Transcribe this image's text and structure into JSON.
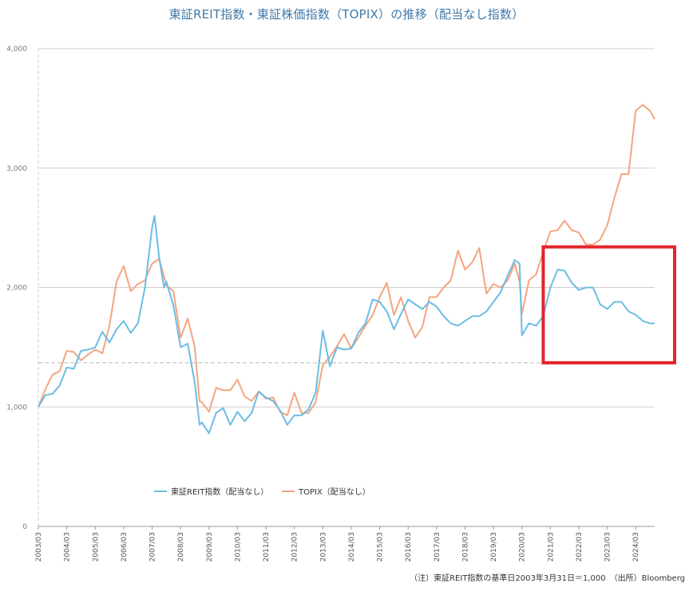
{
  "title": "東証REIT指数・東証株価指数（TOPIX）の推移（配当なし指数）",
  "note": "（注）東証REIT指数の基準日2003年3月31日＝1,000　（出所）Bloomberg",
  "colors": {
    "reit": "#6bbde3",
    "topix": "#f4a581",
    "highlight": "#e3242b",
    "grid": "#cfcfcf",
    "title": "#3f79a8"
  },
  "chart_data": {
    "type": "line",
    "title": "東証REIT指数・東証株価指数（TOPIX）の推移（配当なし指数）",
    "xlabel": "",
    "ylabel": "",
    "ylim": [
      0,
      4000
    ],
    "yticks": [
      "0",
      "1,000",
      "2,000",
      "3,000",
      "4,000"
    ],
    "xticks": [
      "2003/03",
      "2004/03",
      "2005/03",
      "2006/03",
      "2007/03",
      "2008/03",
      "2009/03",
      "2010/03",
      "2011/03",
      "2012/03",
      "2013/03",
      "2014/03",
      "2015/03",
      "2016/03",
      "2017/03",
      "2018/03",
      "2019/03",
      "2020/03",
      "2021/03",
      "2022/03",
      "2023/03",
      "2024/03"
    ],
    "grid": true,
    "legend_position": "bottom-left",
    "reference_line": 1370,
    "highlight_box": {
      "from": "2021/01",
      "to": "2024/12",
      "y_range": [
        1370,
        2340
      ]
    },
    "series": [
      {
        "name": "東証REIT指数（配当なし）",
        "points": [
          [
            "2003/03",
            1000
          ],
          [
            "2003/06",
            1100
          ],
          [
            "2003/09",
            1110
          ],
          [
            "2003/12",
            1180
          ],
          [
            "2004/03",
            1330
          ],
          [
            "2004/06",
            1320
          ],
          [
            "2004/09",
            1470
          ],
          [
            "2004/12",
            1480
          ],
          [
            "2005/03",
            1500
          ],
          [
            "2005/06",
            1630
          ],
          [
            "2005/09",
            1540
          ],
          [
            "2005/12",
            1650
          ],
          [
            "2006/03",
            1720
          ],
          [
            "2006/06",
            1620
          ],
          [
            "2006/09",
            1700
          ],
          [
            "2006/12",
            2000
          ],
          [
            "2007/03",
            2500
          ],
          [
            "2007/04",
            2600
          ],
          [
            "2007/06",
            2250
          ],
          [
            "2007/08",
            2000
          ],
          [
            "2007/09",
            2050
          ],
          [
            "2007/12",
            1850
          ],
          [
            "2008/03",
            1500
          ],
          [
            "2008/06",
            1530
          ],
          [
            "2008/09",
            1200
          ],
          [
            "2008/11",
            850
          ],
          [
            "2008/12",
            870
          ],
          [
            "2009/03",
            780
          ],
          [
            "2009/06",
            950
          ],
          [
            "2009/09",
            990
          ],
          [
            "2009/12",
            850
          ],
          [
            "2010/03",
            960
          ],
          [
            "2010/06",
            880
          ],
          [
            "2010/09",
            950
          ],
          [
            "2010/12",
            1130
          ],
          [
            "2011/03",
            1080
          ],
          [
            "2011/06",
            1050
          ],
          [
            "2011/09",
            970
          ],
          [
            "2011/12",
            850
          ],
          [
            "2012/03",
            930
          ],
          [
            "2012/06",
            930
          ],
          [
            "2012/09",
            980
          ],
          [
            "2012/12",
            1120
          ],
          [
            "2013/03",
            1640
          ],
          [
            "2013/06",
            1340
          ],
          [
            "2013/09",
            1500
          ],
          [
            "2013/12",
            1480
          ],
          [
            "2014/03",
            1490
          ],
          [
            "2014/06",
            1620
          ],
          [
            "2014/09",
            1700
          ],
          [
            "2014/12",
            1900
          ],
          [
            "2015/03",
            1880
          ],
          [
            "2015/06",
            1800
          ],
          [
            "2015/09",
            1650
          ],
          [
            "2015/12",
            1780
          ],
          [
            "2016/03",
            1900
          ],
          [
            "2016/06",
            1860
          ],
          [
            "2016/09",
            1820
          ],
          [
            "2016/12",
            1880
          ],
          [
            "2017/03",
            1840
          ],
          [
            "2017/06",
            1760
          ],
          [
            "2017/09",
            1700
          ],
          [
            "2017/12",
            1680
          ],
          [
            "2018/03",
            1720
          ],
          [
            "2018/06",
            1760
          ],
          [
            "2018/09",
            1760
          ],
          [
            "2018/12",
            1800
          ],
          [
            "2019/03",
            1880
          ],
          [
            "2019/06",
            1960
          ],
          [
            "2019/09",
            2100
          ],
          [
            "2019/12",
            2230
          ],
          [
            "2020/02",
            2200
          ],
          [
            "2020/03",
            1600
          ],
          [
            "2020/06",
            1700
          ],
          [
            "2020/09",
            1680
          ],
          [
            "2020/12",
            1760
          ],
          [
            "2021/03",
            2000
          ],
          [
            "2021/06",
            2150
          ],
          [
            "2021/09",
            2140
          ],
          [
            "2021/12",
            2040
          ],
          [
            "2022/03",
            1980
          ],
          [
            "2022/06",
            2000
          ],
          [
            "2022/09",
            2000
          ],
          [
            "2022/12",
            1860
          ],
          [
            "2023/03",
            1820
          ],
          [
            "2023/06",
            1880
          ],
          [
            "2023/09",
            1880
          ],
          [
            "2023/12",
            1800
          ],
          [
            "2024/03",
            1770
          ],
          [
            "2024/06",
            1720
          ],
          [
            "2024/09",
            1700
          ],
          [
            "2024/11",
            1700
          ]
        ]
      },
      {
        "name": "TOPIX（配当なし）",
        "points": [
          [
            "2003/03",
            1000
          ],
          [
            "2003/06",
            1150
          ],
          [
            "2003/09",
            1270
          ],
          [
            "2003/12",
            1300
          ],
          [
            "2004/03",
            1470
          ],
          [
            "2004/06",
            1460
          ],
          [
            "2004/09",
            1390
          ],
          [
            "2004/12",
            1440
          ],
          [
            "2005/03",
            1480
          ],
          [
            "2005/06",
            1450
          ],
          [
            "2005/09",
            1680
          ],
          [
            "2005/12",
            2050
          ],
          [
            "2006/03",
            2180
          ],
          [
            "2006/06",
            1970
          ],
          [
            "2006/09",
            2030
          ],
          [
            "2006/12",
            2060
          ],
          [
            "2007/03",
            2200
          ],
          [
            "2007/06",
            2240
          ],
          [
            "2007/09",
            2020
          ],
          [
            "2007/12",
            1970
          ],
          [
            "2008/03",
            1580
          ],
          [
            "2008/06",
            1740
          ],
          [
            "2008/09",
            1500
          ],
          [
            "2008/11",
            1050
          ],
          [
            "2008/12",
            1040
          ],
          [
            "2009/03",
            960
          ],
          [
            "2009/06",
            1160
          ],
          [
            "2009/09",
            1140
          ],
          [
            "2009/12",
            1140
          ],
          [
            "2010/03",
            1230
          ],
          [
            "2010/06",
            1090
          ],
          [
            "2010/09",
            1050
          ],
          [
            "2010/12",
            1130
          ],
          [
            "2011/03",
            1070
          ],
          [
            "2011/06",
            1080
          ],
          [
            "2011/09",
            960
          ],
          [
            "2011/12",
            930
          ],
          [
            "2012/03",
            1120
          ],
          [
            "2012/06",
            950
          ],
          [
            "2012/09",
            950
          ],
          [
            "2012/12",
            1040
          ],
          [
            "2013/03",
            1350
          ],
          [
            "2013/06",
            1420
          ],
          [
            "2013/09",
            1510
          ],
          [
            "2013/12",
            1610
          ],
          [
            "2014/03",
            1490
          ],
          [
            "2014/06",
            1580
          ],
          [
            "2014/09",
            1680
          ],
          [
            "2014/12",
            1770
          ],
          [
            "2015/03",
            1920
          ],
          [
            "2015/06",
            2040
          ],
          [
            "2015/09",
            1770
          ],
          [
            "2015/12",
            1920
          ],
          [
            "2016/03",
            1720
          ],
          [
            "2016/06",
            1580
          ],
          [
            "2016/09",
            1670
          ],
          [
            "2016/12",
            1920
          ],
          [
            "2017/03",
            1920
          ],
          [
            "2017/06",
            2000
          ],
          [
            "2017/09",
            2060
          ],
          [
            "2017/12",
            2310
          ],
          [
            "2018/03",
            2150
          ],
          [
            "2018/06",
            2210
          ],
          [
            "2018/09",
            2330
          ],
          [
            "2018/12",
            1950
          ],
          [
            "2019/03",
            2030
          ],
          [
            "2019/06",
            2000
          ],
          [
            "2019/09",
            2060
          ],
          [
            "2019/12",
            2200
          ],
          [
            "2020/02",
            2050
          ],
          [
            "2020/03",
            1780
          ],
          [
            "2020/06",
            2060
          ],
          [
            "2020/09",
            2110
          ],
          [
            "2020/12",
            2300
          ],
          [
            "2021/03",
            2470
          ],
          [
            "2021/06",
            2480
          ],
          [
            "2021/09",
            2560
          ],
          [
            "2021/12",
            2480
          ],
          [
            "2022/03",
            2460
          ],
          [
            "2022/06",
            2360
          ],
          [
            "2022/09",
            2360
          ],
          [
            "2022/12",
            2400
          ],
          [
            "2023/03",
            2520
          ],
          [
            "2023/06",
            2750
          ],
          [
            "2023/09",
            2950
          ],
          [
            "2023/12",
            2950
          ],
          [
            "2024/03",
            3480
          ],
          [
            "2024/06",
            3530
          ],
          [
            "2024/09",
            3480
          ],
          [
            "2024/11",
            3410
          ]
        ]
      }
    ]
  }
}
